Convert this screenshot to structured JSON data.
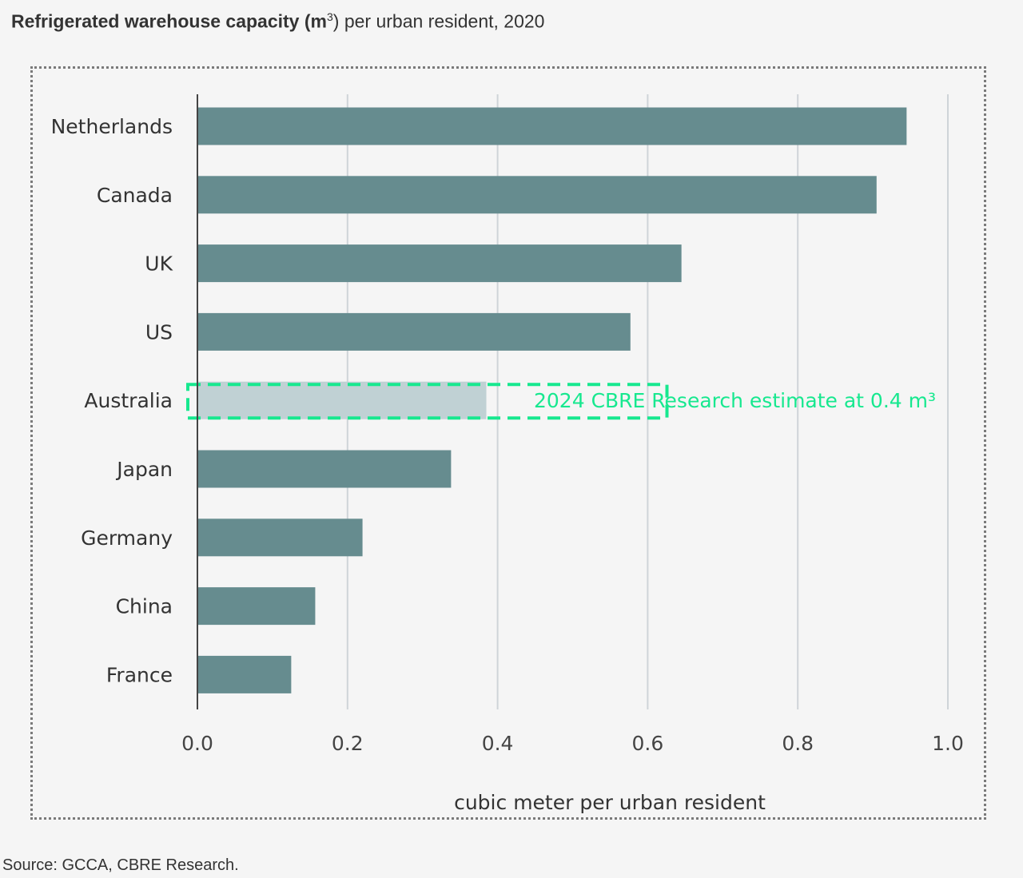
{
  "header": {
    "title_bold": "Refrigerated warehouse capacity (m",
    "title_sup": "3",
    "title_rest": ") per urban resident, 2020"
  },
  "footer": {
    "source": "Source: GCCA, CBRE Research."
  },
  "colors": {
    "bar": "#668c8f",
    "estimate_fill": "#c0d1d4",
    "estimate_outline": "#17e88f",
    "gridline": "#cfd4d8",
    "axis": "#444444",
    "text": "#333333"
  },
  "chart_data": {
    "type": "bar",
    "orientation": "horizontal",
    "categories": [
      "Netherlands",
      "Canada",
      "UK",
      "US",
      "Australia",
      "Japan",
      "Germany",
      "China",
      "France"
    ],
    "values": [
      0.945,
      0.905,
      0.645,
      0.577,
      0.385,
      0.338,
      0.22,
      0.157,
      0.125
    ],
    "highlight_category": "Australia",
    "annotation": "2024 CBRE Research estimate at 0.4 m³",
    "xlabel": "cubic meter per urban resident",
    "ylabel": "",
    "xlim": [
      0,
      1.0
    ],
    "xticks": [
      "0.0",
      "0.2",
      "0.4",
      "0.6",
      "0.8",
      "1.0"
    ],
    "grid": true,
    "legend": "none"
  }
}
